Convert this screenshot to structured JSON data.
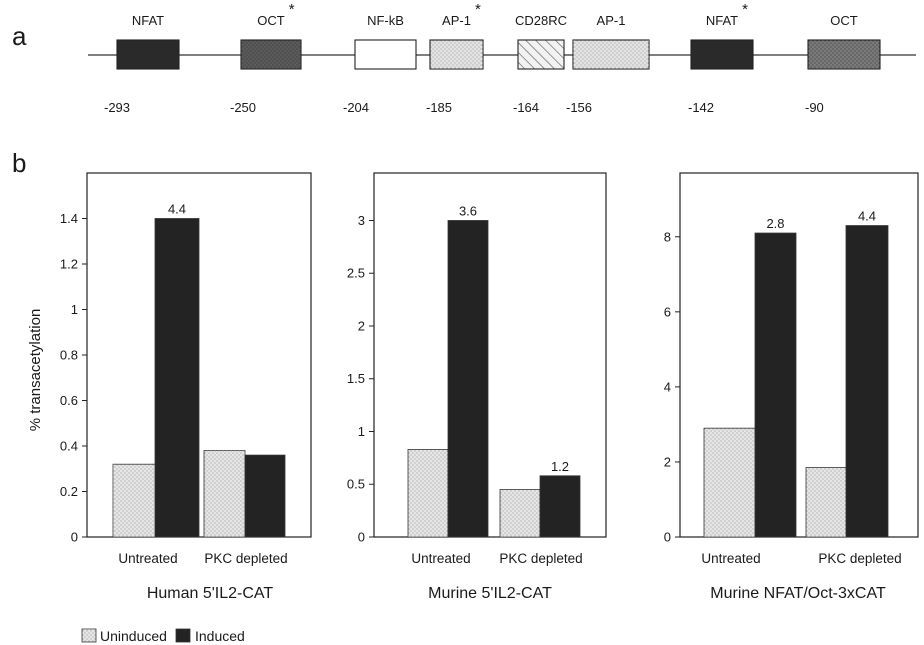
{
  "panel_labels": {
    "a": "a",
    "b": "b"
  },
  "promoter_map": {
    "elements": [
      {
        "name": "NFAT",
        "position": "-293",
        "fill": "#2a2a2a",
        "pattern": "solid",
        "star": false
      },
      {
        "name": "OCT",
        "position": "-250",
        "fill": "#5a5a5a",
        "pattern": "dotted",
        "star": true
      },
      {
        "name": "NF-kB",
        "position": "-204",
        "fill": "#ffffff",
        "pattern": "solid",
        "star": false
      },
      {
        "name": "AP-1",
        "position": "-185",
        "fill": "#e4e4e4",
        "pattern": "dotted",
        "star": true
      },
      {
        "name": "CD28RC",
        "position": "-164",
        "fill": "#e8e8e8",
        "pattern": "hatch",
        "star": false
      },
      {
        "name": "AP-1",
        "position": "-156",
        "fill": "#e4e4e4",
        "pattern": "dotted",
        "star": false
      },
      {
        "name": "NFAT",
        "position": "-142",
        "fill": "#2a2a2a",
        "pattern": "solid",
        "star": true
      },
      {
        "name": "OCT",
        "position": "-90",
        "fill": "#7a7a7a",
        "pattern": "dotted",
        "star": false
      }
    ],
    "star_symbol": "*"
  },
  "colors": {
    "uninduced": "#e6e6e6",
    "induced": "#232323",
    "axis": "#222222"
  },
  "ylabel": "% transacetylation",
  "legend": {
    "placement": "bottom-left",
    "entries": [
      {
        "label": "Uninduced",
        "series": "uninduced"
      },
      {
        "label": "Induced",
        "series": "induced"
      }
    ]
  },
  "chart_data": [
    {
      "type": "bar",
      "title": "Human 5'IL2-CAT",
      "categories": [
        "Untreated",
        "PKC depleted"
      ],
      "series": [
        {
          "name": "Uninduced",
          "values": [
            0.32,
            0.38
          ]
        },
        {
          "name": "Induced",
          "values": [
            1.4,
            0.36
          ]
        }
      ],
      "data_labels": [
        [
          "",
          "4.4"
        ],
        [
          "",
          ""
        ]
      ],
      "ylim": [
        0,
        1.6
      ],
      "yticks": [
        0,
        0.2,
        0.4,
        0.6,
        0.8,
        1,
        1.2,
        1.4
      ],
      "ytick_labels": [
        "0",
        "0.2",
        "0.4",
        "0.6",
        "0.8",
        "1",
        "1.2",
        "1.4"
      ],
      "grid": false
    },
    {
      "type": "bar",
      "title": "Murine 5'IL2-CAT",
      "categories": [
        "Untreated",
        "PKC depleted"
      ],
      "series": [
        {
          "name": "Uninduced",
          "values": [
            0.83,
            0.45
          ]
        },
        {
          "name": "Induced",
          "values": [
            3.0,
            0.58
          ]
        }
      ],
      "data_labels": [
        [
          "",
          "3.6"
        ],
        [
          "",
          "1.2"
        ]
      ],
      "ylim": [
        0,
        3.45
      ],
      "yticks": [
        0,
        0.5,
        1,
        1.5,
        2,
        2.5,
        3
      ],
      "ytick_labels": [
        "0",
        "0.5",
        "1",
        "1.5",
        "2",
        "2.5",
        "3"
      ],
      "grid": false
    },
    {
      "type": "bar",
      "title": "Murine NFAT/Oct-3xCAT",
      "categories": [
        "Untreated",
        "PKC depleted"
      ],
      "series": [
        {
          "name": "Uninduced",
          "values": [
            2.9,
            1.85
          ]
        },
        {
          "name": "Induced",
          "values": [
            8.1,
            8.3
          ]
        }
      ],
      "data_labels": [
        [
          "",
          "2.8"
        ],
        [
          "",
          "4.4"
        ]
      ],
      "ylim": [
        0,
        9.7
      ],
      "yticks": [
        0,
        2,
        4,
        6,
        8
      ],
      "ytick_labels": [
        "0",
        "2",
        "4",
        "6",
        "8"
      ],
      "grid": false
    }
  ]
}
